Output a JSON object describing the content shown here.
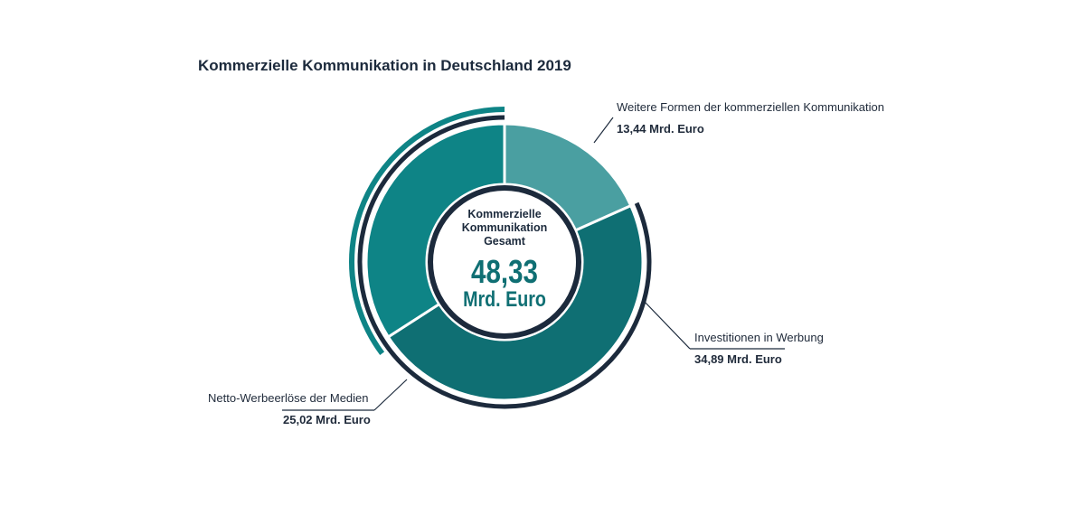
{
  "chart_data": {
    "type": "pie",
    "title": "Kommerzielle Kommunikation in Deutschland 2019",
    "center": {
      "title_lines": [
        "Kommerzielle",
        "Kommunikation",
        "Gesamt"
      ],
      "value": "48,33",
      "unit": "Mrd. Euro"
    },
    "segments": [
      {
        "name": "Weitere Formen der kommerziellen Kommunikation",
        "value": 13.44,
        "value_label": "13,44 Mrd. Euro",
        "color": "#4a9fa1"
      },
      {
        "name": "Investitionen in Werbung",
        "value": 34.89,
        "value_label": "34,89 Mrd. Euro",
        "color": "#0f6f73"
      },
      {
        "name": "Netto-Werbeerlöse der Medien",
        "value": 25.02,
        "value_label": "25,02 Mrd. Euro",
        "color": "#0e8486"
      }
    ],
    "total": 48.33,
    "colors": {
      "dark_navy": "#1c2a3c",
      "teal": "#0e8486",
      "teal_dark": "#0f6f73",
      "teal_light": "#4a9fa1"
    }
  }
}
